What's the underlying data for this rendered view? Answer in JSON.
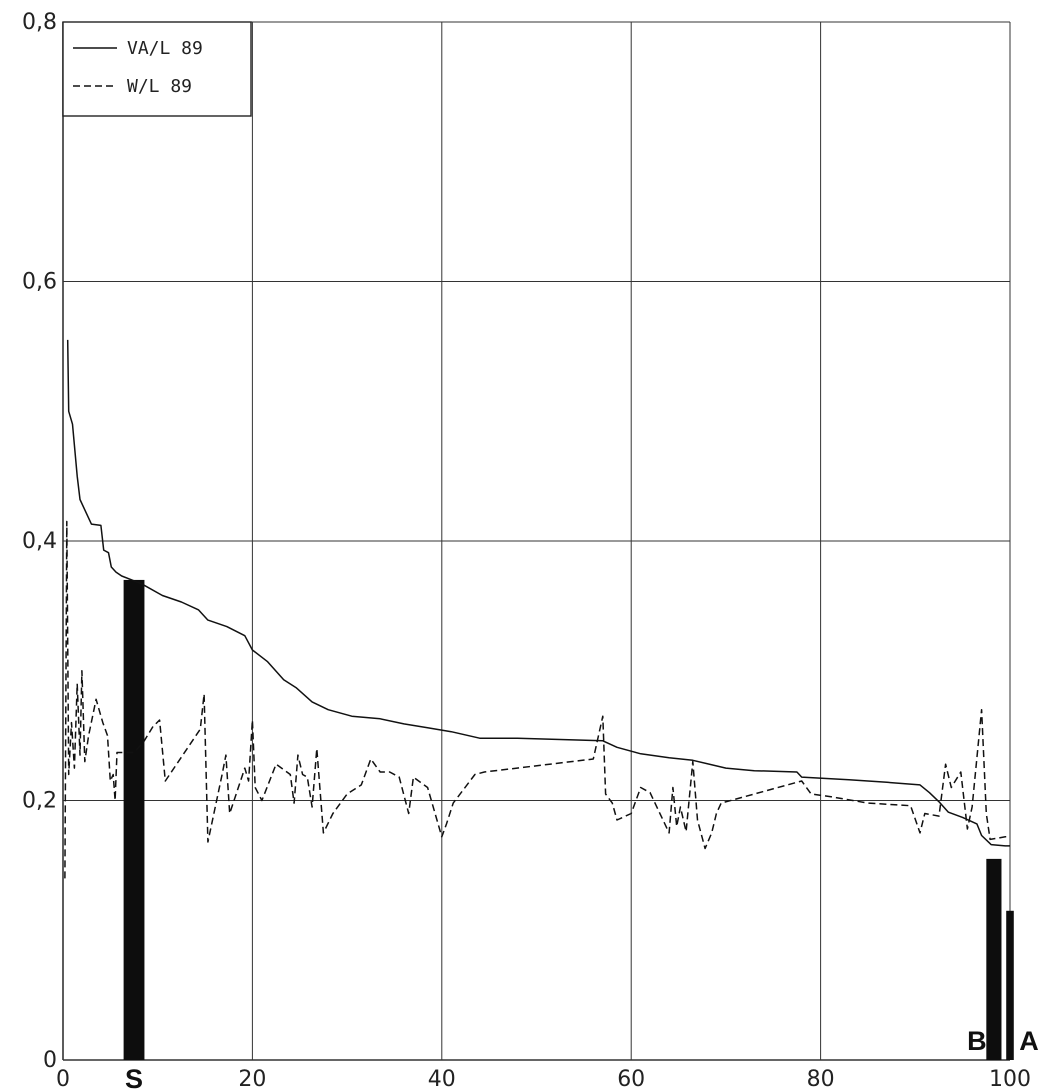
{
  "chart_data": {
    "type": "line",
    "title": "",
    "xlabel": "",
    "ylabel": "",
    "xlim": [
      0,
      100
    ],
    "ylim": [
      0,
      0.8
    ],
    "grid": true,
    "legend_placement": "top-left",
    "x_ticks": [
      "0",
      "20",
      "40",
      "60",
      "80",
      "100"
    ],
    "y_ticks": [
      "0",
      "0,2",
      "0,4",
      "0,6",
      "0,8"
    ],
    "series": [
      {
        "name": "VA/L 89",
        "style": "solid",
        "points": [
          [
            0.5,
            0.555
          ],
          [
            0.6,
            0.5
          ],
          [
            1.0,
            0.49
          ],
          [
            1.5,
            0.45
          ],
          [
            1.8,
            0.432
          ],
          [
            3.0,
            0.413
          ],
          [
            4.0,
            0.412
          ],
          [
            4.3,
            0.393
          ],
          [
            4.8,
            0.391
          ],
          [
            5.1,
            0.38
          ],
          [
            5.6,
            0.376
          ],
          [
            6.2,
            0.373
          ],
          [
            8.3,
            0.367
          ],
          [
            10.5,
            0.358
          ],
          [
            12.5,
            0.353
          ],
          [
            14.3,
            0.347
          ],
          [
            15.3,
            0.339
          ],
          [
            17.3,
            0.334
          ],
          [
            19.2,
            0.327
          ],
          [
            20.0,
            0.316
          ],
          [
            21.6,
            0.307
          ],
          [
            23.3,
            0.293
          ],
          [
            24.6,
            0.287
          ],
          [
            26.3,
            0.276
          ],
          [
            28.0,
            0.27
          ],
          [
            30.5,
            0.265
          ],
          [
            33.5,
            0.263
          ],
          [
            36.0,
            0.259
          ],
          [
            38.5,
            0.256
          ],
          [
            41.0,
            0.253
          ],
          [
            44.0,
            0.248
          ],
          [
            48.0,
            0.248
          ],
          [
            57.0,
            0.246
          ],
          [
            58.5,
            0.241
          ],
          [
            61.0,
            0.236
          ],
          [
            64.0,
            0.233
          ],
          [
            66.5,
            0.231
          ],
          [
            70.0,
            0.225
          ],
          [
            73.0,
            0.223
          ],
          [
            77.5,
            0.222
          ],
          [
            78.0,
            0.218
          ],
          [
            83.0,
            0.216
          ],
          [
            87.0,
            0.214
          ],
          [
            90.5,
            0.212
          ],
          [
            91.5,
            0.206
          ],
          [
            92.5,
            0.199
          ],
          [
            93.5,
            0.191
          ],
          [
            95.0,
            0.187
          ],
          [
            96.5,
            0.182
          ],
          [
            97.0,
            0.173
          ],
          [
            98.0,
            0.166
          ],
          [
            99.5,
            0.165
          ],
          [
            100.0,
            0.165
          ]
        ]
      },
      {
        "name": "W/L 89",
        "style": "dashed",
        "points": [
          [
            0.2,
            0.14
          ],
          [
            0.4,
            0.415
          ],
          [
            0.6,
            0.22
          ],
          [
            0.9,
            0.26
          ],
          [
            1.2,
            0.225
          ],
          [
            1.5,
            0.29
          ],
          [
            1.8,
            0.235
          ],
          [
            2.0,
            0.3
          ],
          [
            2.3,
            0.23
          ],
          [
            2.7,
            0.25
          ],
          [
            3.5,
            0.278
          ],
          [
            4.2,
            0.26
          ],
          [
            4.7,
            0.25
          ],
          [
            5.0,
            0.215
          ],
          [
            5.3,
            0.22
          ],
          [
            5.5,
            0.2
          ],
          [
            5.7,
            0.237
          ],
          [
            7.5,
            0.237
          ],
          [
            8.5,
            0.245
          ],
          [
            9.5,
            0.257
          ],
          [
            10.2,
            0.262
          ],
          [
            10.8,
            0.215
          ],
          [
            14.5,
            0.255
          ],
          [
            14.9,
            0.282
          ],
          [
            15.3,
            0.168
          ],
          [
            16.8,
            0.22
          ],
          [
            17.2,
            0.235
          ],
          [
            17.6,
            0.19
          ],
          [
            19.2,
            0.225
          ],
          [
            19.6,
            0.215
          ],
          [
            20.0,
            0.262
          ],
          [
            20.3,
            0.21
          ],
          [
            21.0,
            0.2
          ],
          [
            22.5,
            0.228
          ],
          [
            24.0,
            0.22
          ],
          [
            24.4,
            0.198
          ],
          [
            24.8,
            0.235
          ],
          [
            25.3,
            0.22
          ],
          [
            25.8,
            0.218
          ],
          [
            26.3,
            0.195
          ],
          [
            26.8,
            0.24
          ],
          [
            27.5,
            0.175
          ],
          [
            28.5,
            0.19
          ],
          [
            30.0,
            0.205
          ],
          [
            31.5,
            0.212
          ],
          [
            32.5,
            0.232
          ],
          [
            33.5,
            0.222
          ],
          [
            34.5,
            0.222
          ],
          [
            35.5,
            0.218
          ],
          [
            36.5,
            0.19
          ],
          [
            37.0,
            0.218
          ],
          [
            38.5,
            0.21
          ],
          [
            40.0,
            0.172
          ],
          [
            40.5,
            0.182
          ],
          [
            41.2,
            0.198
          ],
          [
            43.5,
            0.22
          ],
          [
            44.5,
            0.222
          ],
          [
            56.0,
            0.232
          ],
          [
            57.0,
            0.265
          ],
          [
            57.3,
            0.205
          ],
          [
            58.0,
            0.198
          ],
          [
            58.5,
            0.185
          ],
          [
            60.0,
            0.19
          ],
          [
            61.0,
            0.21
          ],
          [
            62.0,
            0.206
          ],
          [
            64.0,
            0.175
          ],
          [
            64.4,
            0.21
          ],
          [
            64.8,
            0.18
          ],
          [
            65.2,
            0.195
          ],
          [
            65.8,
            0.176
          ],
          [
            66.5,
            0.23
          ],
          [
            67.0,
            0.185
          ],
          [
            67.8,
            0.163
          ],
          [
            68.5,
            0.175
          ],
          [
            69.0,
            0.19
          ],
          [
            69.5,
            0.198
          ],
          [
            73.0,
            0.205
          ],
          [
            78.0,
            0.215
          ],
          [
            79.0,
            0.205
          ],
          [
            81.0,
            0.203
          ],
          [
            85.0,
            0.198
          ],
          [
            89.5,
            0.196
          ],
          [
            90.5,
            0.175
          ],
          [
            91.0,
            0.19
          ],
          [
            92.5,
            0.188
          ],
          [
            93.2,
            0.228
          ],
          [
            93.8,
            0.21
          ],
          [
            94.8,
            0.222
          ],
          [
            95.5,
            0.178
          ],
          [
            96.0,
            0.195
          ],
          [
            97.0,
            0.27
          ],
          [
            97.5,
            0.19
          ],
          [
            97.9,
            0.17
          ],
          [
            99.5,
            0.172
          ],
          [
            100.0,
            0.172
          ]
        ]
      }
    ],
    "markers": [
      {
        "label": "S",
        "x": 7.5,
        "value": 0.37,
        "width": 2.2,
        "label_x": 7.5
      },
      {
        "label": "B",
        "x": 98.3,
        "value": 0.155,
        "width": 1.6,
        "label_x": 96.5
      },
      {
        "label": "A",
        "x": 100.0,
        "value": 0.115,
        "width": 0.8,
        "label_x": 102.0
      }
    ]
  }
}
